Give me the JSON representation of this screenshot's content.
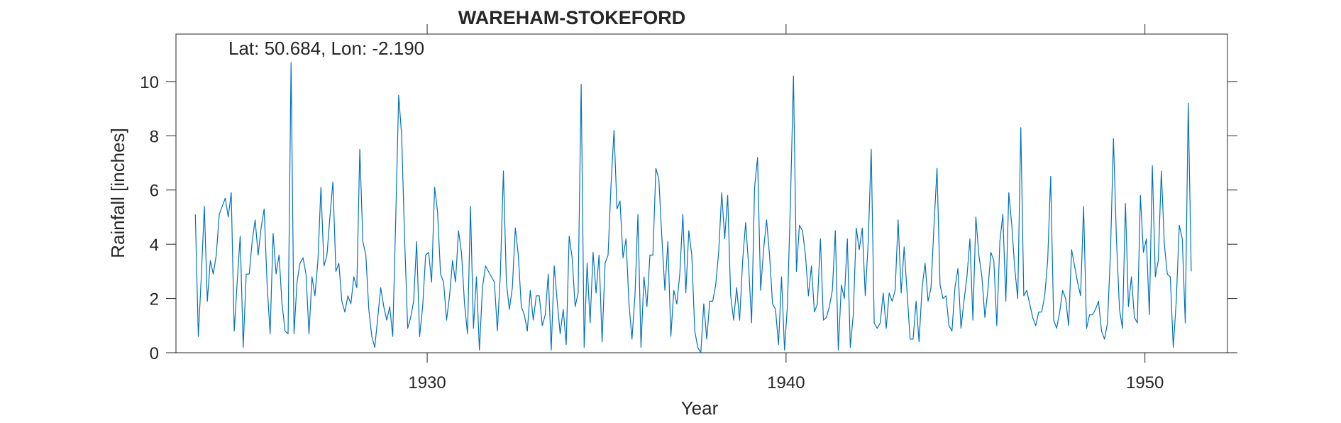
{
  "chart_data": {
    "type": "line",
    "title": "WAREHAM-STOKEFORD",
    "annotation": "Lat: 50.684, Lon: -2.190",
    "xlabel": "Year",
    "ylabel": "Rainfall [inches]",
    "xlim": [
      1923,
      1952.3
    ],
    "ylim": [
      0,
      11.75
    ],
    "x_ticks": [
      1930,
      1940,
      1950
    ],
    "y_ticks": [
      0,
      2,
      4,
      6,
      8,
      10
    ],
    "grid": false,
    "legend": "none",
    "line_color": "#0072BD",
    "series": [
      {
        "x_start": 1923.54,
        "x_step": 0.0833333,
        "values": [
          5.1,
          0.6,
          2.8,
          5.4,
          1.9,
          3.4,
          2.9,
          3.6,
          5.1,
          5.4,
          5.7,
          5.0,
          5.9,
          0.8,
          2.6,
          4.3,
          0.2,
          2.9,
          2.9,
          4.1,
          4.9,
          3.6,
          4.6,
          5.3,
          2.5,
          0.7,
          4.4,
          2.9,
          3.6,
          1.8,
          0.8,
          0.7,
          10.7,
          0.7,
          2.6,
          3.3,
          3.5,
          2.9,
          0.7,
          2.8,
          2.1,
          3.4,
          6.1,
          3.2,
          3.6,
          5.0,
          6.3,
          3.0,
          3.3,
          1.9,
          1.5,
          2.1,
          1.8,
          2.8,
          2.4,
          7.5,
          4.1,
          3.6,
          1.6,
          0.6,
          0.2,
          1.3,
          2.4,
          1.7,
          1.2,
          1.7,
          0.6,
          4.9,
          9.5,
          8.0,
          4.1,
          0.9,
          1.3,
          1.9,
          4.1,
          0.6,
          1.7,
          3.6,
          3.7,
          2.6,
          6.1,
          5.2,
          2.9,
          2.6,
          1.2,
          2.1,
          3.4,
          2.6,
          4.5,
          3.7,
          1.8,
          0.7,
          5.4,
          0.9,
          2.8,
          0.1,
          2.4,
          3.2,
          3.0,
          2.8,
          2.6,
          0.8,
          2.9,
          6.7,
          2.6,
          1.6,
          2.4,
          4.6,
          3.6,
          1.7,
          1.4,
          0.8,
          2.3,
          1.2,
          2.1,
          2.1,
          1.0,
          1.4,
          2.9,
          0.1,
          3.2,
          1.9,
          0.7,
          1.6,
          0.3,
          4.3,
          3.5,
          1.7,
          2.2,
          9.9,
          0.2,
          3.3,
          1.1,
          3.7,
          2.2,
          3.6,
          0.4,
          3.3,
          3.6,
          6.2,
          8.2,
          5.3,
          5.6,
          3.5,
          4.2,
          1.8,
          0.5,
          2.1,
          5.1,
          0.2,
          2.8,
          1.7,
          3.6,
          3.6,
          6.8,
          6.4,
          4.2,
          2.3,
          4.1,
          0.6,
          2.3,
          1.8,
          2.9,
          5.1,
          2.2,
          4.5,
          3.6,
          0.8,
          0.2,
          0.0,
          1.8,
          0.5,
          1.9,
          1.9,
          2.5,
          3.7,
          5.9,
          4.2,
          5.8,
          2.1,
          1.2,
          2.4,
          1.2,
          3.4,
          4.8,
          3.2,
          1.1,
          6.1,
          7.2,
          2.3,
          3.8,
          4.9,
          3.6,
          1.8,
          1.6,
          0.3,
          2.8,
          0.1,
          1.8,
          5.6,
          10.2,
          3.0,
          4.7,
          4.5,
          3.6,
          2.1,
          3.2,
          1.5,
          1.8,
          4.2,
          1.2,
          1.3,
          1.7,
          2.3,
          4.5,
          0.1,
          2.5,
          2.0,
          4.2,
          0.2,
          1.4,
          4.6,
          3.8,
          4.6,
          2.1,
          4.1,
          7.5,
          1.1,
          0.9,
          1.1,
          2.2,
          0.9,
          2.2,
          1.9,
          2.3,
          4.9,
          2.2,
          3.9,
          2.2,
          0.5,
          0.5,
          1.9,
          0.4,
          2.4,
          3.3,
          1.9,
          2.4,
          4.7,
          6.8,
          2.5,
          2.0,
          2.1,
          1.0,
          0.8,
          2.4,
          3.1,
          0.9,
          1.9,
          2.8,
          4.2,
          1.2,
          5.0,
          3.6,
          2.8,
          1.3,
          2.3,
          3.7,
          3.4,
          1.0,
          4.1,
          5.1,
          1.9,
          5.9,
          4.7,
          3.1,
          2.0,
          8.3,
          2.1,
          2.3,
          1.8,
          1.3,
          1.0,
          1.5,
          1.5,
          2.1,
          3.4,
          6.5,
          1.2,
          0.9,
          1.5,
          2.3,
          2.0,
          1.0,
          3.8,
          3.2,
          2.6,
          2.1,
          5.4,
          0.9,
          1.4,
          1.4,
          1.6,
          1.9,
          0.8,
          0.5,
          1.1,
          3.7,
          7.9,
          4.2,
          1.6,
          0.9,
          5.5,
          1.7,
          2.8,
          1.3,
          1.1,
          5.8,
          3.7,
          4.2,
          1.4,
          6.9,
          2.8,
          3.4,
          6.7,
          4.0,
          2.9,
          2.8,
          0.2,
          1.9,
          4.7,
          4.2,
          1.1,
          9.2,
          3.0
        ]
      }
    ]
  }
}
